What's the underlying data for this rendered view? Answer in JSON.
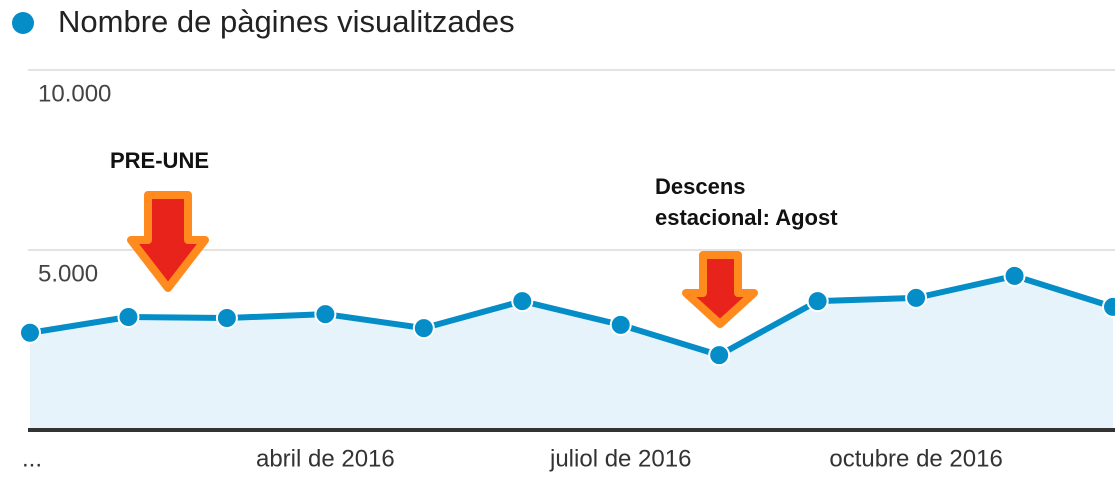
{
  "chart_data": {
    "type": "line",
    "categories": [
      "...",
      null,
      null,
      "abril de 2016",
      null,
      null,
      "juliol de 2016",
      null,
      null,
      "octubre de 2016",
      null,
      null
    ],
    "series": [
      {
        "name": "Nombre de pàgines visualitzades",
        "color": "#058dc7",
        "values": [
          2700,
          3140,
          3110,
          3220,
          2830,
          3580,
          2920,
          2080,
          3580,
          3670,
          4280,
          3420
        ]
      }
    ],
    "ylim": [
      0,
      10000
    ],
    "yticks": [
      {
        "value": 5000,
        "label": "5.000"
      },
      {
        "value": 10000,
        "label": "10.000"
      }
    ],
    "grid": true,
    "annotations": [
      {
        "lines": [
          "PRE-UNE"
        ]
      },
      {
        "lines": [
          "Descens",
          "estacional: Agost"
        ]
      }
    ]
  }
}
